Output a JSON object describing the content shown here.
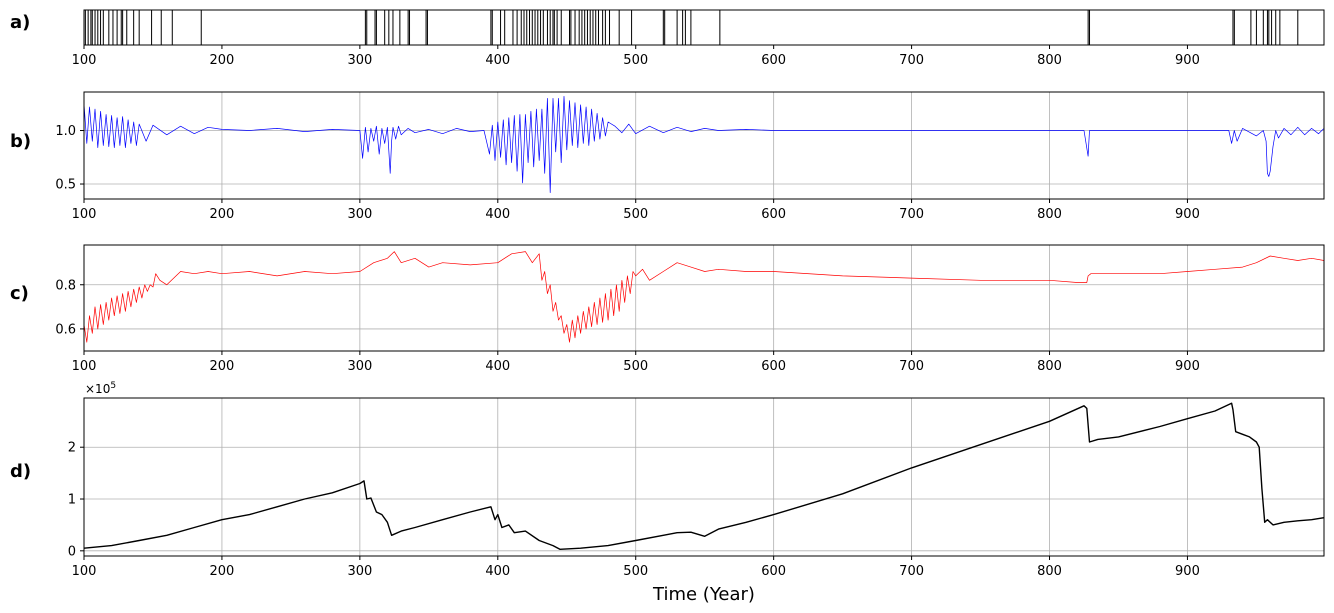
{
  "chart_data": [
    {
      "panel": "a)",
      "type": "event-raster",
      "xlim": [
        100,
        999
      ],
      "x_ticks": [
        100,
        200,
        300,
        400,
        500,
        600,
        700,
        800,
        900
      ],
      "event_years": [
        101,
        103,
        105,
        106,
        108,
        110,
        112,
        114,
        118,
        121,
        124,
        127,
        128,
        131,
        136,
        140,
        149,
        156,
        164,
        185,
        304,
        305,
        311,
        312,
        318,
        321,
        324,
        329,
        335,
        336,
        348,
        349,
        395,
        396,
        402,
        405,
        411,
        414,
        417,
        419,
        421,
        423,
        425,
        427,
        429,
        431,
        433,
        436,
        438,
        440,
        441,
        443,
        446,
        452,
        453,
        456,
        459,
        461,
        463,
        465,
        467,
        469,
        471,
        473,
        476,
        478,
        481,
        488,
        497,
        520,
        521,
        530,
        534,
        536,
        540,
        561,
        828,
        829,
        933,
        934,
        946,
        950,
        955,
        958,
        959,
        961,
        964,
        967,
        980
      ],
      "grid": false
    },
    {
      "panel": "b)",
      "type": "line",
      "color": "#0000ff",
      "xlim": [
        100,
        999
      ],
      "ylim": [
        0.36,
        1.36
      ],
      "x_ticks": [
        100,
        200,
        300,
        400,
        500,
        600,
        700,
        800,
        900
      ],
      "y_ticks": [
        0.5,
        1.0
      ],
      "y_tick_labels": [
        "0.5",
        "1.0"
      ],
      "grid": true,
      "series": [
        {
          "x": [
            100,
            102,
            104,
            106,
            108,
            110,
            112,
            114,
            116,
            118,
            120,
            122,
            124,
            126,
            128,
            130,
            132,
            134,
            136,
            138,
            140,
            145,
            150,
            160,
            170,
            180,
            190,
            200,
            220,
            240,
            260,
            280,
            300,
            302,
            304,
            306,
            308,
            310,
            312,
            314,
            316,
            318,
            320,
            322,
            323,
            324,
            326,
            328,
            330,
            335,
            340,
            350,
            360,
            370,
            380,
            390,
            394,
            396,
            398,
            400,
            402,
            404,
            406,
            408,
            410,
            412,
            414,
            416,
            418,
            420,
            422,
            424,
            426,
            428,
            430,
            432,
            434,
            436,
            438,
            440,
            442,
            444,
            446,
            448,
            450,
            452,
            454,
            456,
            458,
            460,
            462,
            464,
            466,
            468,
            470,
            472,
            474,
            476,
            478,
            480,
            485,
            490,
            495,
            500,
            510,
            520,
            530,
            540,
            550,
            560,
            580,
            600,
            650,
            700,
            750,
            800,
            820,
            825,
            828,
            829,
            830,
            832,
            840,
            860,
            880,
            900,
            920,
            930,
            932,
            934,
            936,
            940,
            950,
            955,
            957,
            958,
            959,
            960,
            962,
            964,
            966,
            970,
            975,
            980,
            985,
            990,
            995,
            999
          ],
          "y": [
            1.25,
            0.88,
            1.22,
            0.9,
            1.2,
            0.84,
            1.18,
            0.86,
            1.15,
            0.85,
            1.14,
            0.84,
            1.12,
            0.86,
            1.13,
            0.84,
            1.1,
            0.88,
            1.08,
            0.86,
            1.06,
            0.9,
            1.05,
            0.96,
            1.04,
            0.97,
            1.03,
            1.01,
            1.0,
            1.02,
            0.99,
            1.01,
            1.0,
            0.74,
            1.03,
            0.8,
            1.02,
            0.9,
            1.04,
            0.78,
            1.02,
            0.88,
            1.03,
            0.6,
            0.9,
            1.03,
            0.92,
            1.04,
            0.96,
            1.02,
            0.98,
            1.01,
            0.97,
            1.02,
            0.99,
            1.0,
            0.78,
            1.05,
            0.72,
            1.08,
            0.75,
            1.1,
            0.68,
            1.12,
            0.7,
            1.14,
            0.62,
            1.15,
            0.51,
            1.15,
            0.7,
            1.18,
            0.66,
            1.2,
            0.72,
            1.2,
            0.6,
            1.3,
            0.42,
            1.3,
            0.8,
            1.3,
            0.7,
            1.32,
            0.82,
            1.28,
            0.86,
            1.26,
            0.84,
            1.24,
            0.88,
            1.22,
            0.86,
            1.2,
            0.9,
            1.16,
            0.92,
            1.12,
            0.95,
            1.08,
            1.04,
            0.98,
            1.06,
            0.97,
            1.04,
            0.98,
            1.03,
            0.99,
            1.02,
            1.0,
            1.01,
            1.0,
            1.0,
            1.0,
            1.0,
            1.0,
            1.0,
            1.0,
            0.76,
            1.0,
            1.0,
            1.0,
            1.0,
            1.0,
            1.0,
            1.0,
            1.0,
            1.0,
            0.88,
            1.0,
            0.9,
            1.02,
            0.95,
            1.0,
            0.9,
            0.6,
            0.57,
            0.62,
            0.85,
            1.0,
            0.93,
            1.02,
            0.96,
            1.03,
            0.96,
            1.02,
            0.97,
            1.02
          ]
        }
      ]
    },
    {
      "panel": "c)",
      "type": "line",
      "color": "#ff0000",
      "xlim": [
        100,
        999
      ],
      "ylim": [
        0.5,
        0.98
      ],
      "x_ticks": [
        100,
        200,
        300,
        400,
        500,
        600,
        700,
        800,
        900
      ],
      "y_ticks": [
        0.6,
        0.8
      ],
      "y_tick_labels": [
        "0.6",
        "0.8"
      ],
      "grid": true,
      "series": [
        {
          "x": [
            100,
            102,
            104,
            106,
            108,
            110,
            112,
            114,
            116,
            118,
            120,
            122,
            124,
            126,
            128,
            130,
            132,
            134,
            136,
            138,
            140,
            142,
            144,
            146,
            148,
            150,
            152,
            155,
            160,
            170,
            180,
            190,
            200,
            220,
            240,
            260,
            280,
            300,
            310,
            320,
            325,
            330,
            340,
            350,
            360,
            380,
            400,
            410,
            420,
            425,
            430,
            432,
            434,
            436,
            438,
            440,
            442,
            444,
            446,
            448,
            450,
            452,
            454,
            456,
            458,
            460,
            462,
            464,
            466,
            468,
            470,
            472,
            474,
            476,
            478,
            480,
            482,
            484,
            486,
            488,
            490,
            492,
            494,
            496,
            498,
            500,
            505,
            510,
            520,
            530,
            540,
            550,
            560,
            580,
            600,
            650,
            700,
            750,
            800,
            820,
            827,
            828,
            830,
            835,
            850,
            880,
            900,
            920,
            940,
            950,
            960,
            970,
            980,
            990,
            999
          ],
          "y": [
            0.62,
            0.54,
            0.66,
            0.58,
            0.7,
            0.6,
            0.71,
            0.62,
            0.72,
            0.64,
            0.74,
            0.66,
            0.75,
            0.67,
            0.76,
            0.68,
            0.77,
            0.7,
            0.78,
            0.72,
            0.79,
            0.74,
            0.8,
            0.77,
            0.8,
            0.79,
            0.85,
            0.82,
            0.8,
            0.86,
            0.85,
            0.86,
            0.85,
            0.86,
            0.84,
            0.86,
            0.85,
            0.86,
            0.9,
            0.92,
            0.95,
            0.9,
            0.92,
            0.88,
            0.9,
            0.89,
            0.9,
            0.94,
            0.95,
            0.9,
            0.94,
            0.82,
            0.86,
            0.76,
            0.8,
            0.68,
            0.72,
            0.64,
            0.66,
            0.58,
            0.62,
            0.54,
            0.64,
            0.56,
            0.66,
            0.58,
            0.68,
            0.6,
            0.7,
            0.61,
            0.72,
            0.62,
            0.74,
            0.63,
            0.76,
            0.64,
            0.78,
            0.66,
            0.8,
            0.68,
            0.82,
            0.72,
            0.84,
            0.76,
            0.86,
            0.84,
            0.87,
            0.82,
            0.86,
            0.9,
            0.88,
            0.86,
            0.87,
            0.86,
            0.86,
            0.84,
            0.83,
            0.82,
            0.82,
            0.81,
            0.81,
            0.84,
            0.85,
            0.85,
            0.85,
            0.85,
            0.86,
            0.87,
            0.88,
            0.9,
            0.93,
            0.92,
            0.91,
            0.92,
            0.91
          ]
        }
      ]
    },
    {
      "panel": "d)",
      "type": "line",
      "color": "#000000",
      "xlim": [
        100,
        999
      ],
      "ylim": [
        -0.1,
        2.95
      ],
      "y_scale_label": "×10",
      "y_scale_exponent": "5",
      "x_ticks": [
        100,
        200,
        300,
        400,
        500,
        600,
        700,
        800,
        900
      ],
      "y_ticks": [
        0,
        1,
        2
      ],
      "y_tick_labels": [
        "0",
        "1",
        "2"
      ],
      "xlabel": "Time (Year)",
      "grid": true,
      "series": [
        {
          "x": [
            100,
            120,
            140,
            160,
            180,
            200,
            220,
            240,
            260,
            280,
            300,
            303,
            305,
            308,
            312,
            316,
            320,
            323,
            330,
            340,
            360,
            380,
            395,
            398,
            400,
            403,
            408,
            412,
            420,
            430,
            440,
            445,
            460,
            480,
            500,
            520,
            530,
            540,
            550,
            560,
            580,
            600,
            650,
            700,
            750,
            800,
            825,
            827,
            829,
            835,
            850,
            880,
            900,
            920,
            932,
            933,
            935,
            940,
            945,
            950,
            952,
            954,
            956,
            958,
            962,
            970,
            980,
            990,
            999
          ],
          "y": [
            0.05,
            0.1,
            0.2,
            0.3,
            0.45,
            0.6,
            0.7,
            0.85,
            1.0,
            1.12,
            1.3,
            1.35,
            1.0,
            1.02,
            0.75,
            0.7,
            0.55,
            0.3,
            0.38,
            0.45,
            0.6,
            0.75,
            0.85,
            0.6,
            0.7,
            0.45,
            0.5,
            0.35,
            0.38,
            0.2,
            0.1,
            0.03,
            0.05,
            0.1,
            0.2,
            0.3,
            0.35,
            0.36,
            0.28,
            0.42,
            0.55,
            0.7,
            1.1,
            1.6,
            2.05,
            2.5,
            2.8,
            2.75,
            2.1,
            2.15,
            2.2,
            2.4,
            2.55,
            2.7,
            2.85,
            2.72,
            2.3,
            2.25,
            2.2,
            2.1,
            2.0,
            1.2,
            0.55,
            0.6,
            0.5,
            0.55,
            0.58,
            0.6,
            0.64
          ]
        }
      ]
    }
  ],
  "panel_labels": [
    "a)",
    "b)",
    "c)",
    "d)"
  ],
  "xlabel": "Time (Year)",
  "sci_prefix": "×10",
  "sci_exponent": "5"
}
